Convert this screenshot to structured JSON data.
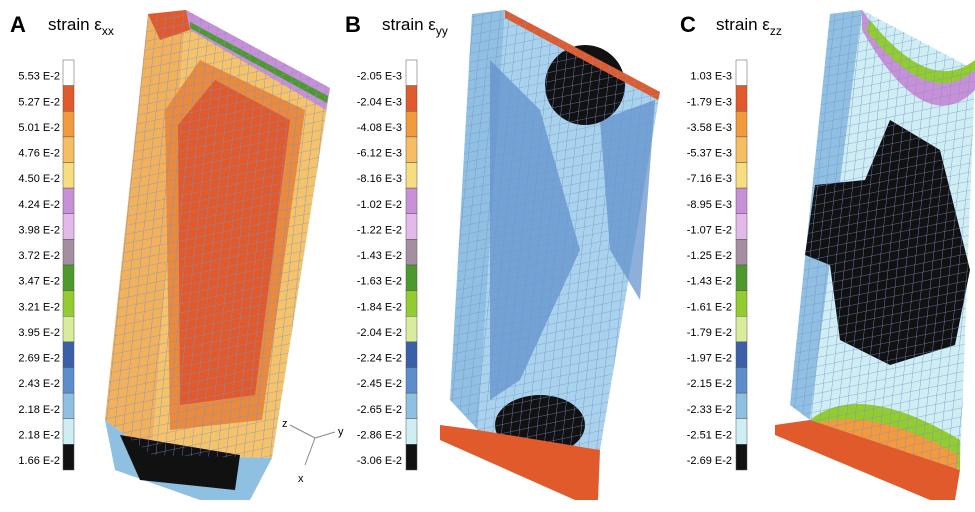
{
  "legend_colors": [
    "#ffffff",
    "#e05a2b",
    "#f39a3c",
    "#f7bd63",
    "#f7dc80",
    "#c890d6",
    "#e2b9ea",
    "#a68ea2",
    "#4d9a2c",
    "#93cc2f",
    "#d9ec9c",
    "#3b5fa9",
    "#5d8dcb",
    "#8fbfe1",
    "#cfeef3",
    "#111111"
  ],
  "panels": [
    {
      "letter": "A",
      "title": "strain ε",
      "subscript": "xx",
      "labels": [
        "5.53 E-2",
        "5.27 E-2",
        "5.01 E-2",
        "4.76 E-2",
        "4.50 E-2",
        "4.24 E-2",
        "3.98 E-2",
        "3.72 E-2",
        "3.47 E-2",
        "3.21 E-2",
        "3.95 E-2",
        "2.69 E-2",
        "2.43 E-2",
        "2.18 E-2",
        "2.18 E-2",
        "1.66 E-2"
      ]
    },
    {
      "letter": "B",
      "title": "strain ε",
      "subscript": "yy",
      "labels": [
        "-2.05 E-3",
        "-2.04 E-3",
        "-4.08 E-3",
        "-6.12 E-3",
        "-8.16 E-3",
        "-1.02 E-2",
        "-1.22 E-2",
        "-1.43 E-2",
        "-1.63 E-2",
        "-1.84 E-2",
        "-2.04 E-2",
        "-2.24 E-2",
        "-2.45 E-2",
        "-2.65 E-2",
        "-2.86 E-2",
        "-3.06 E-2"
      ]
    },
    {
      "letter": "C",
      "title": "strain ε",
      "subscript": "zz",
      "labels": [
        "1.03 E-3",
        "-1.79 E-3",
        "-3.58 E-3",
        "-5.37 E-3",
        "-7.16 E-3",
        "-8.95 E-3",
        "-1.07 E-2",
        "-1.25 E-2",
        "-1.43 E-2",
        "-1.61 E-2",
        "-1.79 E-2",
        "-1.97 E-2",
        "-2.15 E-2",
        "-2.33 E-2",
        "-2.51 E-2",
        "-2.69 E-2"
      ]
    }
  ],
  "axes": {
    "z": "z",
    "y": "y",
    "x": "x"
  }
}
